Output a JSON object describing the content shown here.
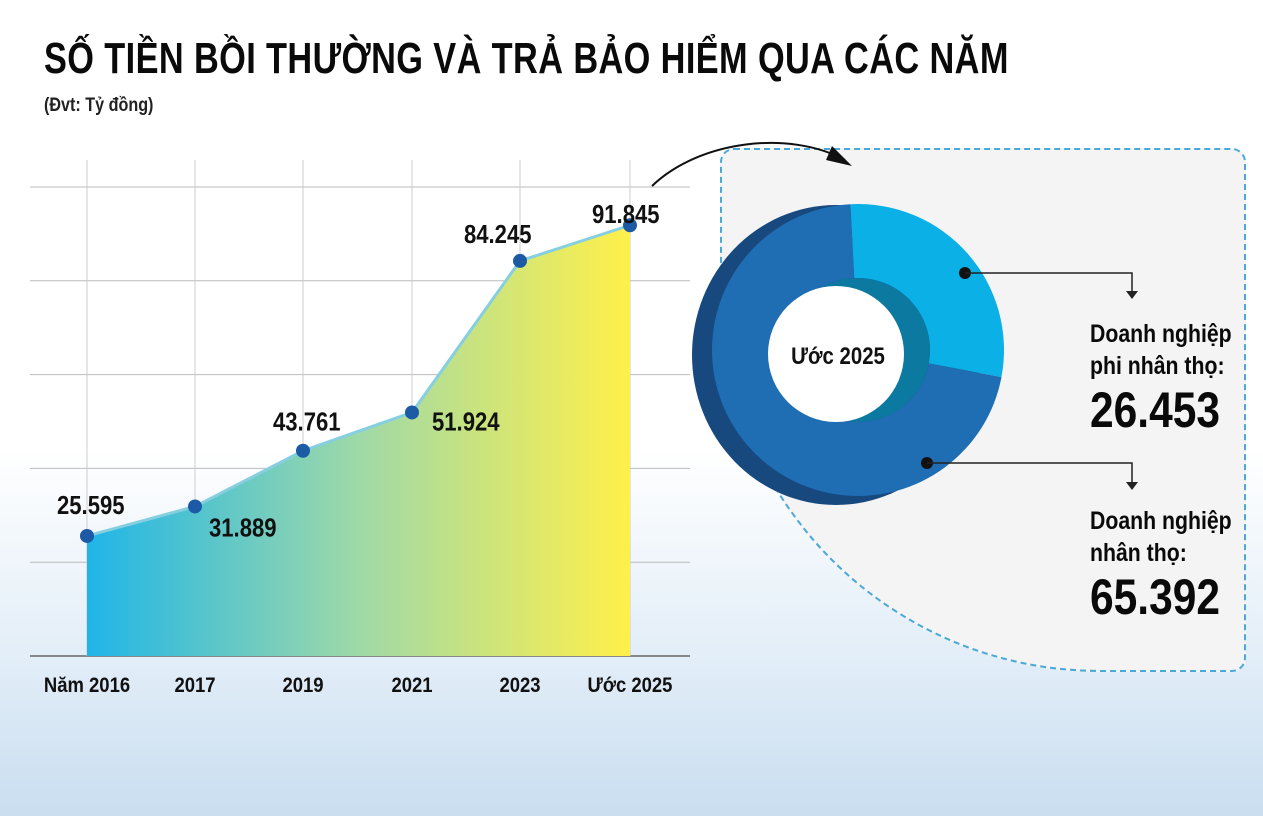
{
  "title": "SỐ TIỀN BỒI THƯỜNG VÀ TRẢ BẢO HIỂM QUA CÁC NĂM",
  "unit": "(Đvt: Tỷ đồng)",
  "chart_data": [
    {
      "type": "area",
      "categories": [
        "Năm 2016",
        "2017",
        "2019",
        "2021",
        "2023",
        "Ước 2025"
      ],
      "values": [
        25595,
        31889,
        43761,
        51924,
        84245,
        91845
      ],
      "value_labels": [
        "25.595",
        "31.889",
        "43.761",
        "51.924",
        "84.245",
        "91.845"
      ],
      "ylim": [
        0,
        100000
      ],
      "grid": true,
      "colors": {
        "fill_start": "#1fb5e8",
        "fill_end": "#fff04a",
        "line": "#86cfe0",
        "point": "#1d5aa6"
      }
    },
    {
      "type": "pie",
      "center_label": "Ước 2025",
      "slices": [
        {
          "name": "Doanh nghiệp phi nhân thọ:",
          "value": 26453,
          "label": "26.453",
          "color": "#0ab0e6"
        },
        {
          "name": "Doanh nghiệp nhân thọ:",
          "value": 65392,
          "label": "65.392",
          "color": "#1f6db3"
        }
      ]
    }
  ],
  "side": {
    "l1a": "Doanh nghiệp",
    "l1b": "phi nhân thọ:",
    "l2a": "Doanh nghiệp",
    "l2b": "nhân thọ:"
  }
}
